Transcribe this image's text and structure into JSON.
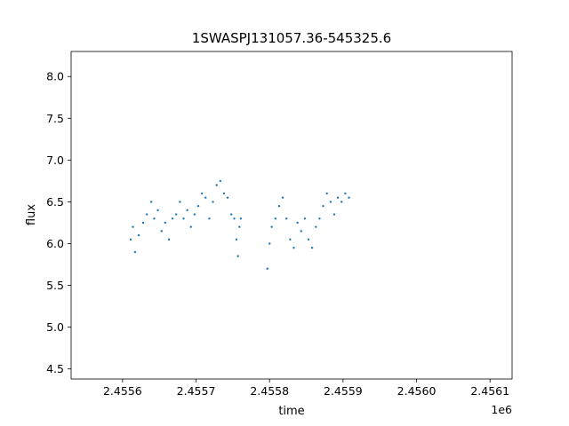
{
  "chart_data": {
    "type": "scatter",
    "title": "1SWASPJ131057.36-545325.6",
    "xlabel": "time",
    "ylabel": "flux",
    "x_offset_label": "1e6",
    "xlim": [
      2.45553,
      2.45613
    ],
    "ylim": [
      4.38,
      8.3
    ],
    "x_ticks": [
      2.4556,
      2.4557,
      2.4558,
      2.4559,
      2.456,
      2.4561
    ],
    "x_tick_labels": [
      "2.4556",
      "2.4557",
      "2.4558",
      "2.4559",
      "2.4560",
      "2.4561"
    ],
    "y_ticks": [
      4.5,
      5.0,
      5.5,
      6.0,
      6.5,
      7.0,
      7.5,
      8.0
    ],
    "y_tick_labels": [
      "4.5",
      "5.0",
      "5.5",
      "6.0",
      "6.5",
      "7.0",
      "7.5",
      "8.0"
    ],
    "grid": false,
    "marker_color": "#1f77b4",
    "series": [
      {
        "x": [
          2.455611,
          2.455614,
          2.455617,
          2.455622,
          2.455628,
          2.455633,
          2.455639,
          2.455643,
          2.455648,
          2.455653,
          2.455658,
          2.455663,
          2.455668,
          2.455673,
          2.455678,
          2.455683,
          2.455688,
          2.455693,
          2.455698,
          2.455703,
          2.455708,
          2.455713,
          2.455718,
          2.455723,
          2.455728,
          2.455733,
          2.455738,
          2.455743,
          2.455748,
          2.455752,
          2.455755,
          2.455757,
          2.455759,
          2.455761,
          2.455797,
          2.4558,
          2.455803,
          2.455808,
          2.455813,
          2.455818,
          2.455823,
          2.455828,
          2.455833,
          2.455838,
          2.455843,
          2.455848,
          2.455853,
          2.455858,
          2.455863,
          2.455868,
          2.455873,
          2.455878,
          2.455883,
          2.455888,
          2.455893,
          2.455898,
          2.455903,
          2.455908
        ],
        "y": [
          6.05,
          6.2,
          5.9,
          6.1,
          6.25,
          6.35,
          6.5,
          6.3,
          6.4,
          6.15,
          6.25,
          6.05,
          6.3,
          6.35,
          6.5,
          6.3,
          6.4,
          6.2,
          6.35,
          6.45,
          6.6,
          6.55,
          6.3,
          6.5,
          6.7,
          6.75,
          6.6,
          6.55,
          6.35,
          6.3,
          6.05,
          5.85,
          6.2,
          6.3,
          5.7,
          6.0,
          6.2,
          6.3,
          6.45,
          6.55,
          6.3,
          6.05,
          5.95,
          6.25,
          6.15,
          6.3,
          6.05,
          5.95,
          6.2,
          6.3,
          6.45,
          6.6,
          6.5,
          6.35,
          6.55,
          6.5,
          6.6,
          6.55
        ]
      }
    ]
  }
}
